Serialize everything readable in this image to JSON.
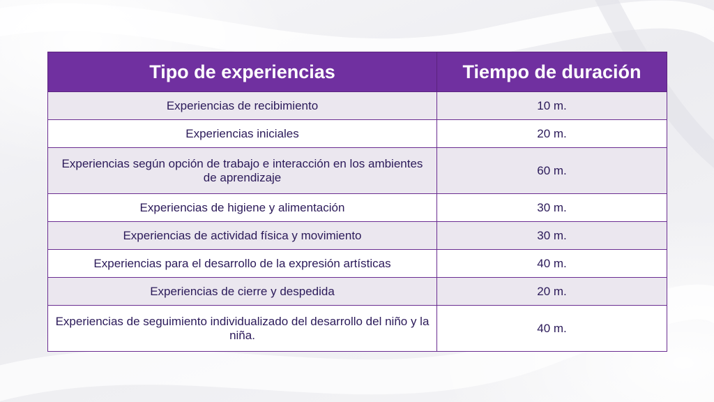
{
  "table": {
    "headers": [
      "Tipo de experiencias",
      "Tiempo de duración"
    ],
    "rows": [
      {
        "tipo": "Experiencias de recibimiento",
        "tiempo": "10 m."
      },
      {
        "tipo": "Experiencias iniciales",
        "tiempo": "20 m."
      },
      {
        "tipo": "Experiencias según opción de trabajo e interacción en los ambientes de aprendizaje",
        "tiempo": "60 m."
      },
      {
        "tipo": "Experiencias de higiene y alimentación",
        "tiempo": "30 m."
      },
      {
        "tipo": "Experiencias de actividad física y movimiento",
        "tiempo": "30 m."
      },
      {
        "tipo": "Experiencias para el desarrollo de la expresión artísticas",
        "tiempo": "40 m."
      },
      {
        "tipo": "Experiencias de cierre y despedida",
        "tiempo": "20 m."
      },
      {
        "tipo": "Experiencias de seguimiento individualizado del desarrollo del niño y la niña.",
        "tiempo": "40 m."
      }
    ]
  },
  "colors": {
    "header_bg": "#7030a0",
    "header_text": "#ffffff",
    "row_alt_bg": "#ebe7ef",
    "row_bg": "#ffffff",
    "body_text": "#2b1a59",
    "border": "#6a2c91"
  }
}
